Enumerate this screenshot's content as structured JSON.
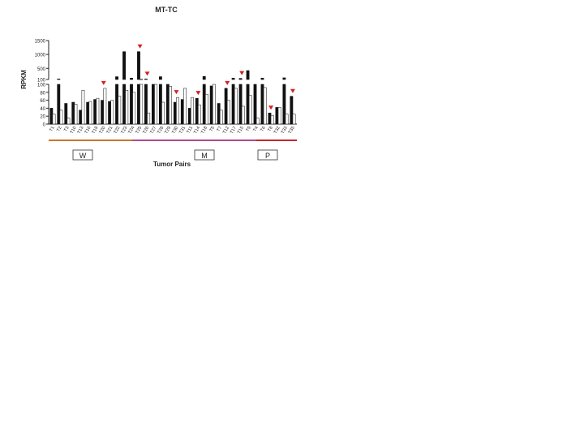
{
  "chart_data": {
    "type": "bar",
    "title": "MT-TC",
    "xlabel": "Tumor Pairs",
    "ylabel": "RPKM",
    "axis_break": true,
    "upper_ylim": [
      100,
      1500
    ],
    "upper_ticks": [
      "1500",
      "1000",
      "500",
      "100"
    ],
    "lower_ylim": [
      0,
      100
    ],
    "lower_ticks": [
      "100",
      "80",
      "60",
      "40",
      "20",
      "0"
    ],
    "categories": [
      "T1",
      "T2",
      "T3",
      "T10",
      "T13",
      "T16",
      "T19",
      "T20",
      "T21",
      "T22",
      "T23",
      "T24",
      "T25",
      "T26",
      "T27",
      "T28",
      "T29",
      "T30",
      "T31",
      "T11",
      "T14",
      "T18",
      "T5",
      "T7",
      "T12",
      "T17",
      "T15",
      "T9",
      "T4",
      "T6",
      "T8",
      "T32",
      "T33",
      "T35"
    ],
    "series": [
      {
        "values": [
          40,
          120,
          52,
          55,
          35,
          55,
          62,
          60,
          57,
          200,
          1100,
          150,
          1100,
          120,
          100,
          200,
          100,
          55,
          62,
          40,
          65,
          210,
          96,
          52,
          90,
          150,
          140,
          420,
          100,
          150,
          28,
          42,
          160,
          70
        ]
      },
      {
        "values": [
          25,
          35,
          15,
          50,
          85,
          57,
          65,
          90,
          60,
          70,
          85,
          80,
          110,
          28,
          100,
          55,
          95,
          67,
          90,
          67,
          48,
          75,
          100,
          35,
          60,
          90,
          45,
          72,
          15,
          92,
          22,
          42,
          25,
          25
        ]
      }
    ],
    "groups": [
      {
        "label": "W",
        "color": "#c8782a"
      },
      {
        "label": "M",
        "color": "#b5478e"
      },
      {
        "label": "P",
        "color": "#c4262e"
      }
    ],
    "marked_categories": [
      "T20",
      "T25",
      "T26",
      "T30",
      "T14",
      "T12",
      "T15",
      "T8",
      "T35"
    ],
    "marker_color": "#d62020"
  }
}
